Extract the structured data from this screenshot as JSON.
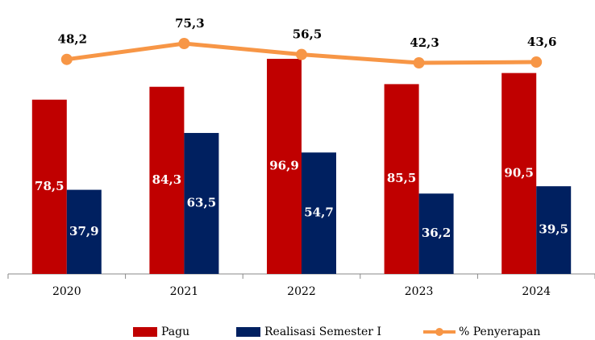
{
  "chart_data": {
    "type": "bar_line",
    "categories": [
      "2020",
      "2021",
      "2022",
      "2023",
      "2024"
    ],
    "series": [
      {
        "name": "Pagu",
        "type": "bar",
        "color": "#c00000",
        "values": [
          78.5,
          84.3,
          96.9,
          85.5,
          90.5
        ],
        "value_labels": [
          "78,5",
          "84,3",
          "96,9",
          "85,5",
          "90,5"
        ]
      },
      {
        "name": "Realisasi Semester I",
        "type": "bar",
        "color": "#002060",
        "values": [
          37.9,
          63.5,
          54.7,
          36.2,
          39.5
        ],
        "value_labels": [
          "37,9",
          "63,5",
          "54,7",
          "36,2",
          "39,5"
        ]
      },
      {
        "name": "% Penyerapan",
        "type": "line",
        "color": "#f79646",
        "values": [
          48.2,
          75.3,
          56.5,
          42.3,
          43.6
        ],
        "value_labels": [
          "48,2",
          "75,3",
          "56,5",
          "42,3",
          "43,6"
        ]
      }
    ],
    "legend": "bottom"
  }
}
